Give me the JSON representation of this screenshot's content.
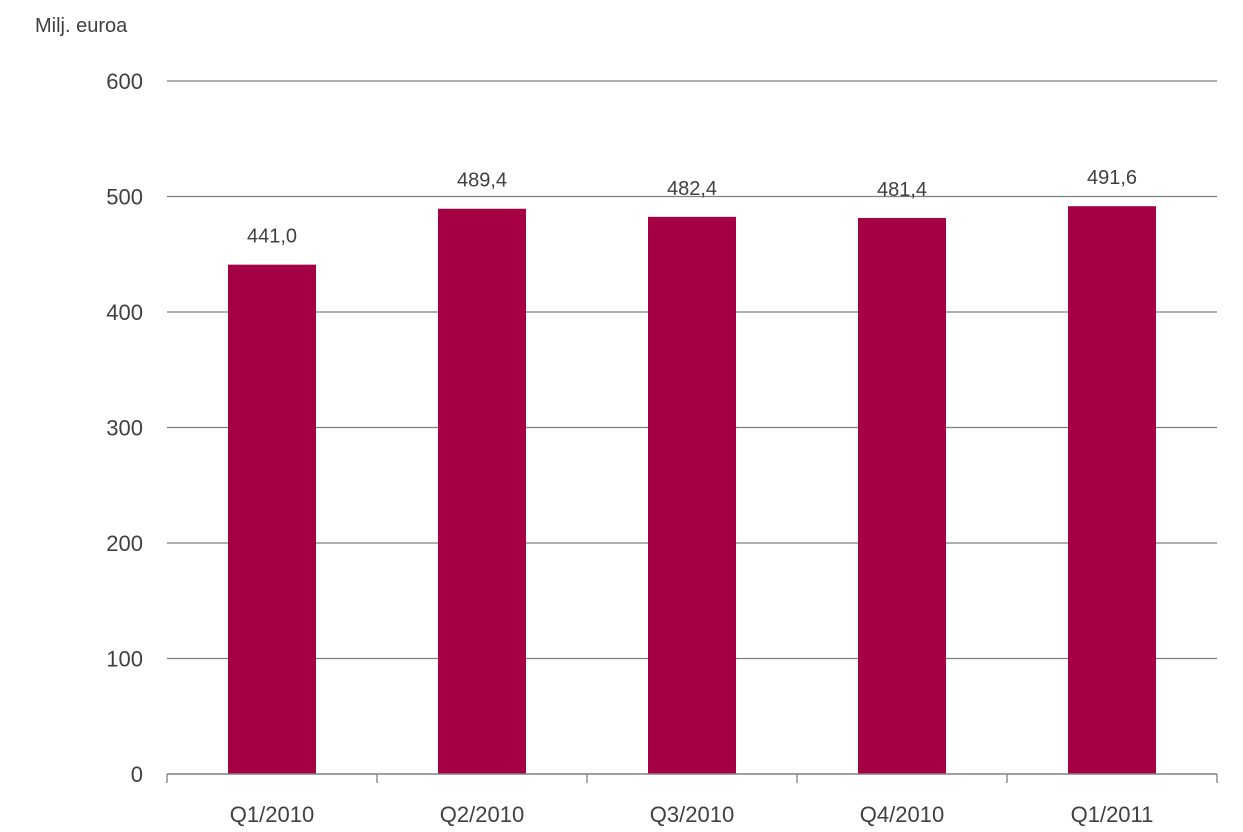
{
  "chart_data": {
    "type": "bar",
    "title": "",
    "ylabel": "Milj. euroa",
    "xlabel": "",
    "categories": [
      "Q1/2010",
      "Q2/2010",
      "Q3/2010",
      "Q4/2010",
      "Q1/2011"
    ],
    "values": [
      441.0,
      489.4,
      482.4,
      481.4,
      491.6
    ],
    "data_labels": [
      "441,0",
      "489,4",
      "482,4",
      "481,4",
      "491,6"
    ],
    "ylim": [
      0,
      600
    ],
    "yticks": [
      0,
      100,
      200,
      300,
      400,
      500,
      600
    ],
    "ytick_labels": [
      "0",
      "100",
      "200",
      "300",
      "400",
      "500",
      "600"
    ],
    "grid": true,
    "legend": "none",
    "bar_color": "#a50044",
    "grid_color": "#808080",
    "text_color": "#404040"
  }
}
